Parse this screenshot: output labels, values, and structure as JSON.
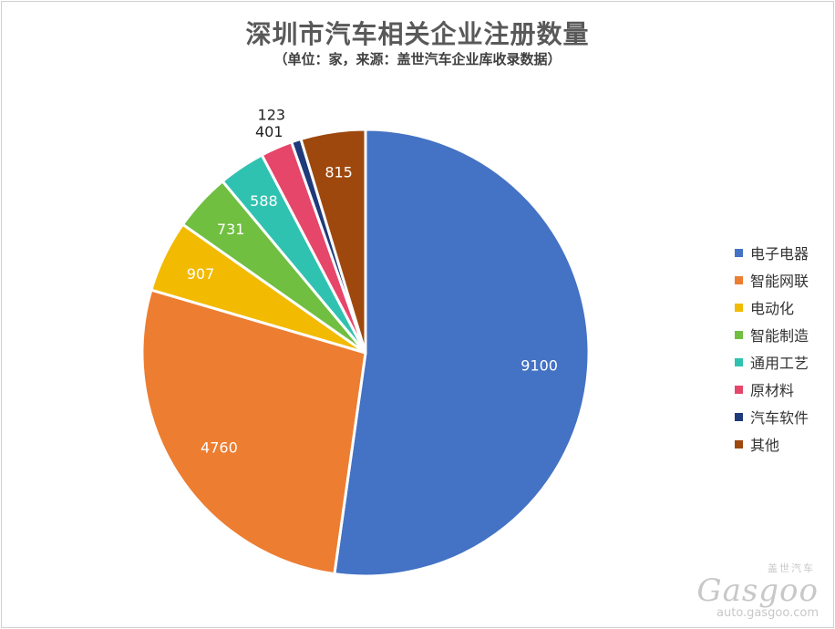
{
  "chart_data": {
    "type": "pie",
    "title": "深圳市汽车相关企业注册数量",
    "subtitle": "（单位：家，来源：盖世汽车企业库收录数据）",
    "slices": [
      {
        "label": "电子电器",
        "value": 9100,
        "color": "#4472C4"
      },
      {
        "label": "智能网联",
        "value": 4760,
        "color": "#ED7D31"
      },
      {
        "label": "电动化",
        "value": 907,
        "color": "#F2BA00"
      },
      {
        "label": "智能制造",
        "value": 731,
        "color": "#70BF41"
      },
      {
        "label": "通用工艺",
        "value": 588,
        "color": "#30C2B0"
      },
      {
        "label": "原材料",
        "value": 401,
        "color": "#E5466A"
      },
      {
        "label": "汽车软件",
        "value": 123,
        "color": "#1F3A7A"
      },
      {
        "label": "其他",
        "value": 815,
        "color": "#9E480E"
      }
    ],
    "start": "12 o'clock",
    "direction": "clockwise",
    "legend_position": "right"
  },
  "watermark": {
    "cn": "盖世汽车",
    "logo": "Gasgoo",
    "url": "auto.gasgoo.com"
  }
}
